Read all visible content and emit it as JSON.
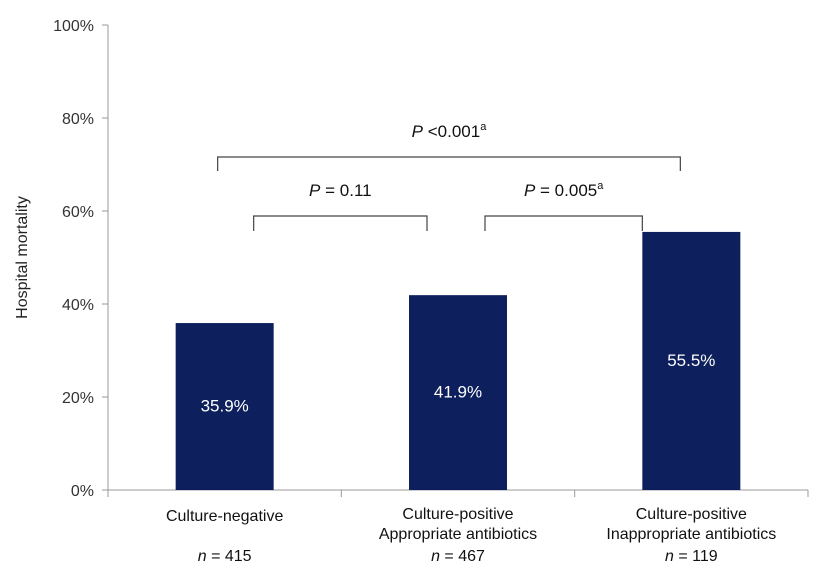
{
  "chart_data": {
    "type": "bar",
    "categories": [
      [
        "Culture-negative"
      ],
      [
        "Culture-positive",
        "Appropriate antibiotics"
      ],
      [
        "Culture-positive",
        "Inappropriate antibiotics"
      ]
    ],
    "n_labels": [
      "415",
      "467",
      "119"
    ],
    "n_prefix": "n",
    "n_equals": " = ",
    "values": [
      35.9,
      41.9,
      55.5
    ],
    "value_labels": [
      "35.9%",
      "41.9%",
      "55.5%"
    ],
    "ylabel": "Hospital mortality",
    "ylim": [
      0,
      100
    ],
    "yticks": [
      0,
      20,
      40,
      60,
      80,
      100
    ],
    "ytick_labels": [
      "0%",
      "20%",
      "40%",
      "60%",
      "80%",
      "100%"
    ],
    "grid": false,
    "bar_color": "#0d1f5c",
    "comparisons": [
      {
        "from": 0,
        "to": 1,
        "p_prefix": "P",
        "p_text": " = 0.11",
        "superscript": ""
      },
      {
        "from": 1,
        "to": 2,
        "p_prefix": "P",
        "p_text": " = 0.005",
        "superscript": "a"
      },
      {
        "from": 0,
        "to": 2,
        "p_prefix": "P",
        "p_text": " <0.001",
        "superscript": "a"
      }
    ]
  }
}
